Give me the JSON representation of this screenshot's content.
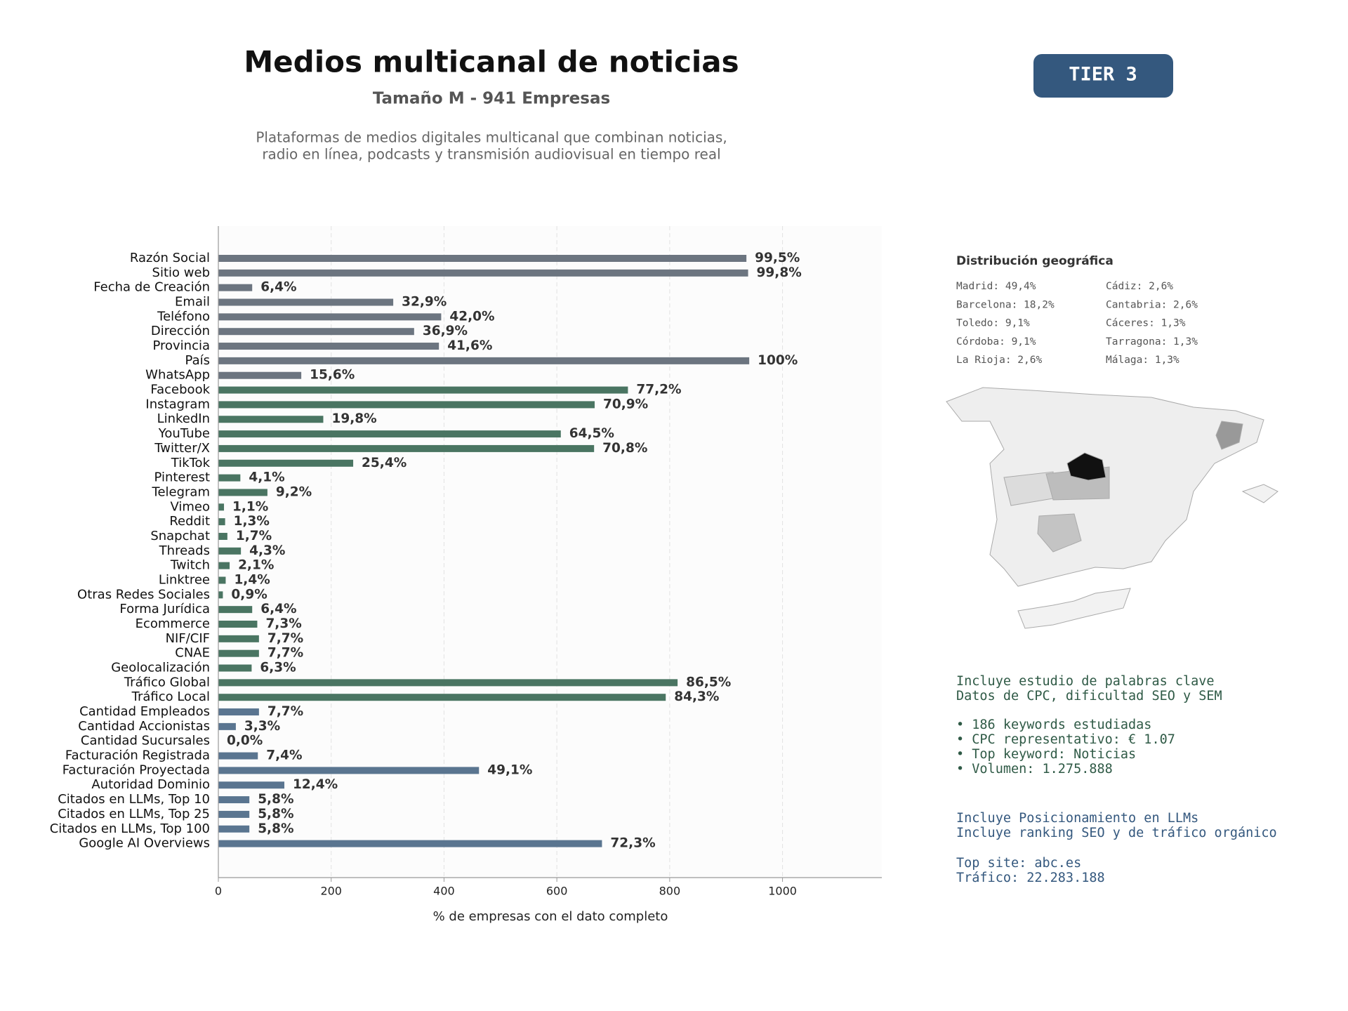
{
  "header": {
    "title": "Medios multicanal de noticias",
    "subtitle": "Tamaño M - 941 Empresas",
    "description": [
      "Plataformas de medios digitales multicanal que combinan noticias,",
      "radio en línea, podcasts y transmisión audiovisual en tiempo real"
    ],
    "badge": "TIER 3"
  },
  "chart_data": {
    "type": "bar",
    "orientation": "horizontal",
    "categories": [
      "Razón Social",
      "Sitio web",
      "Fecha de Creación",
      "Email",
      "Teléfono",
      "Dirección",
      "Provincia",
      "País",
      "WhatsApp",
      "Facebook",
      "Instagram",
      "LinkedIn",
      "YouTube",
      "Twitter/X",
      "TikTok",
      "Pinterest",
      "Telegram",
      "Vimeo",
      "Reddit",
      "Snapchat",
      "Threads",
      "Twitch",
      "Linktree",
      "Otras Redes Sociales",
      "Forma Jurídica",
      "Ecommerce",
      "NIF/CIF",
      "CNAE",
      "Geolocalización",
      "Tráfico Global",
      "Tráfico Local",
      "Cantidad Empleados",
      "Cantidad Accionistas",
      "Cantidad Sucursales",
      "Facturación Registrada",
      "Facturación Proyectada",
      "Autoridad Dominio",
      "Citados en LLMs, Top 10",
      "Citados en LLMs, Top 25",
      "Citados en LLMs, Top 100",
      "Google AI Overviews"
    ],
    "values": [
      936,
      939,
      60,
      310,
      395,
      347,
      391,
      941,
      147,
      726,
      667,
      186,
      607,
      666,
      239,
      39,
      87,
      10,
      12,
      16,
      40,
      20,
      13,
      8,
      60,
      69,
      72,
      72,
      59,
      814,
      793,
      72,
      31,
      0,
      70,
      462,
      117,
      55,
      55,
      55,
      680
    ],
    "value_labels": [
      "99,5%",
      "99,8%",
      "6,4%",
      "32,9%",
      "42,0%",
      "36,9%",
      "41,6%",
      "100%",
      "15,6%",
      "77,2%",
      "70,9%",
      "19,8%",
      "64,5%",
      "70,8%",
      "25,4%",
      "4,1%",
      "9,2%",
      "1,1%",
      "1,3%",
      "1,7%",
      "4,3%",
      "2,1%",
      "1,4%",
      "0,9%",
      "6,4%",
      "7,3%",
      "7,7%",
      "7,7%",
      "6,3%",
      "86,5%",
      "84,3%",
      "7,7%",
      "3,3%",
      "0,0%",
      "7,4%",
      "49,1%",
      "12,4%",
      "5,8%",
      "5,8%",
      "5,8%",
      "72,3%"
    ],
    "colors": [
      "#6c7580",
      "#6c7580",
      "#6c7580",
      "#6c7580",
      "#6c7580",
      "#6c7580",
      "#6c7580",
      "#6c7580",
      "#6c7580",
      "#4a7562",
      "#4a7562",
      "#4a7562",
      "#4a7562",
      "#4a7562",
      "#4a7562",
      "#4a7562",
      "#4a7562",
      "#4a7562",
      "#4a7562",
      "#4a7562",
      "#4a7562",
      "#4a7562",
      "#4a7562",
      "#4a7562",
      "#4a7562",
      "#4a7562",
      "#4a7562",
      "#4a7562",
      "#4a7562",
      "#4a7562",
      "#4a7562",
      "#5a7590",
      "#5a7590",
      "#5a7590",
      "#5a7590",
      "#5a7590",
      "#5a7590",
      "#5a7590",
      "#5a7590",
      "#5a7590",
      "#5a7590"
    ],
    "xlabel": "% de empresas con el dato completo",
    "xlim": [
      0,
      1176
    ],
    "xticks": [
      0,
      200,
      400,
      600,
      800,
      1000
    ],
    "grid": true
  },
  "geo": {
    "title": "Distribución geográfica",
    "items": [
      "Madrid: 49,4%",
      "Barcelona: 18,2%",
      "Toledo: 9,1%",
      "Córdoba: 9,1%",
      "La Rioja: 2,6%",
      "Cádiz: 2,6%",
      "Cantabria: 2,6%",
      "Cáceres: 1,3%",
      "Tarragona: 1,3%",
      "Málaga: 1,3%"
    ]
  },
  "notes": {
    "keywords_intro": [
      "Incluye estudio de palabras clave",
      "Datos de CPC, dificultad SEO y SEM"
    ],
    "keywords_list": [
      "• 186 keywords estudiadas",
      "• CPC representativo: € 1.07",
      "• Top keyword: Noticias",
      "• Volumen: 1.275.888"
    ],
    "llm_intro": [
      "Incluye Posicionamiento en LLMs",
      "Incluye ranking SEO y de tráfico orgánico"
    ],
    "site": [
      "Top site: abc.es",
      "Tráfico: 22.283.188"
    ]
  }
}
